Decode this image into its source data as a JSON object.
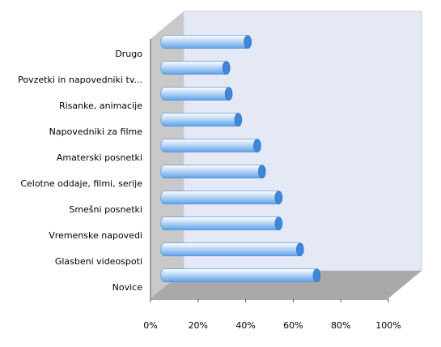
{
  "chart_data": {
    "type": "bar",
    "orientation": "horizontal",
    "style": "3d-cylinder",
    "categories": [
      "Drugo",
      "Povzetki in napovedniki tv...",
      "Risanke, animacije",
      "Napovedniki za filme",
      "Amaterski posnetki",
      "Celotne oddaje, filmi, serije",
      "Smešni posnetki",
      "Vremenske napovedi",
      "Glasbeni videospoti",
      "Novice"
    ],
    "values": [
      35,
      26,
      27,
      31,
      39,
      41,
      48,
      48,
      57,
      64
    ],
    "x_ticks": [
      "0%",
      "20%",
      "40%",
      "60%",
      "80%",
      "100%"
    ],
    "xlim": [
      0,
      100
    ],
    "grid": false,
    "legend": "none",
    "colors": {
      "bar_light": "#ffffff",
      "bar_mid": "#b9d6f4",
      "bar_dark": "#5da2ec",
      "bar_cap": "#3f87d8",
      "back_wall": "#e4e9f5",
      "side_wall": "#c9c9c9",
      "floor": "#a9a9a9"
    }
  }
}
